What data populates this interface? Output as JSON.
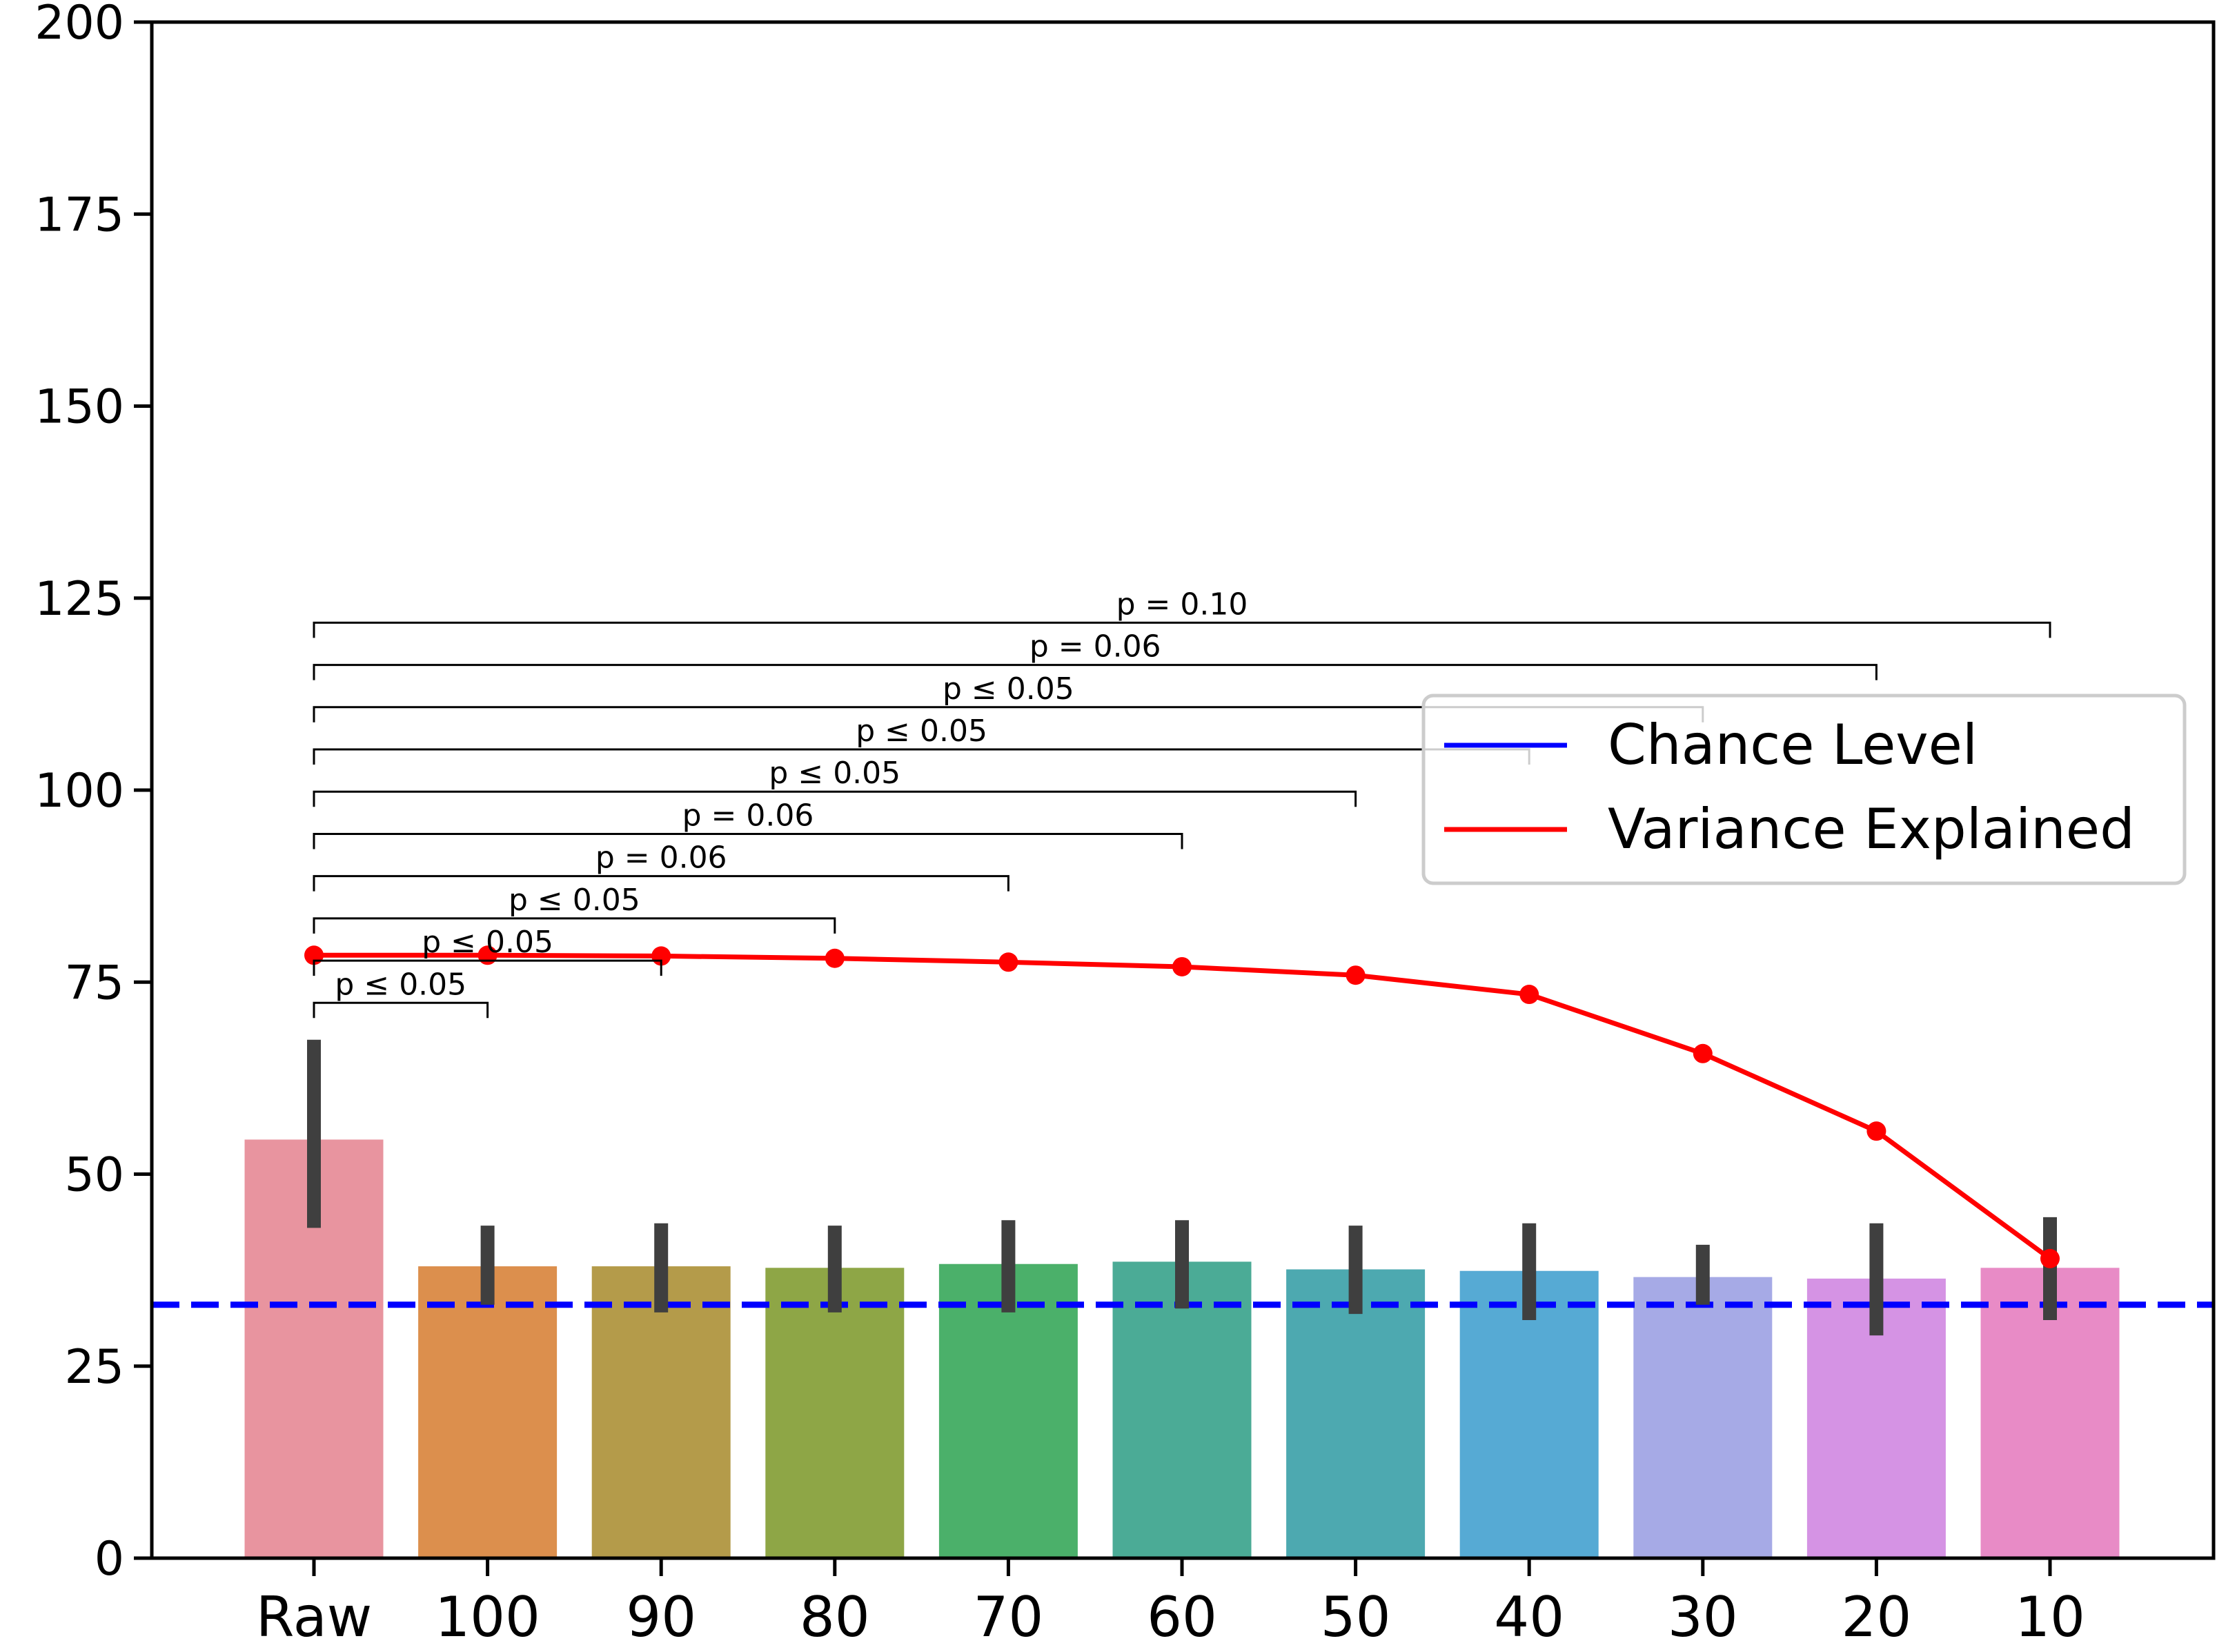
{
  "chart_data": {
    "type": "bar",
    "title": "",
    "xlabel": "",
    "ylabel": "",
    "ylim": [
      0,
      200
    ],
    "yticks": [
      0,
      25,
      50,
      75,
      100,
      125,
      150,
      175,
      200
    ],
    "categories": [
      "Raw",
      "100",
      "90",
      "80",
      "70",
      "60",
      "50",
      "40",
      "30",
      "20",
      "10"
    ],
    "bar_values": [
      54.5,
      38.0,
      38.0,
      37.8,
      38.3,
      38.6,
      37.6,
      37.4,
      36.6,
      36.4,
      37.8
    ],
    "error_bars": [
      [
        43.0,
        67.5
      ],
      [
        33.0,
        43.3
      ],
      [
        32.0,
        43.6
      ],
      [
        32.0,
        43.3
      ],
      [
        32.0,
        44.0
      ],
      [
        32.5,
        44.0
      ],
      [
        31.8,
        43.3
      ],
      [
        31.0,
        43.6
      ],
      [
        33.0,
        40.8
      ],
      [
        29.0,
        43.6
      ],
      [
        31.0,
        44.4
      ]
    ],
    "bar_colors": [
      "#e8949f",
      "#dc8f4d",
      "#b49b4a",
      "#8ea646",
      "#4bb06a",
      "#4bab96",
      "#4da9b0",
      "#56aad4",
      "#a6aae6",
      "#d593e4",
      "#e88bc6"
    ],
    "series": [
      {
        "name": "Variance Explained",
        "type": "line",
        "color": "#ff0000",
        "values": [
          78.5,
          78.5,
          78.4,
          78.1,
          77.6,
          77.0,
          75.9,
          73.4,
          65.7,
          55.6,
          39.0
        ]
      },
      {
        "name": "Chance Level",
        "type": "hline",
        "color": "#0000ff",
        "style": "dashed",
        "value": 33.0
      }
    ],
    "annotations": [
      {
        "from": "Raw",
        "to": "100",
        "y": 72.3,
        "text": "p ≤ 0.05"
      },
      {
        "from": "Raw",
        "to": "90",
        "y": 77.8,
        "text": "p ≤ 0.05"
      },
      {
        "from": "Raw",
        "to": "80",
        "y": 83.3,
        "text": "p ≤ 0.05"
      },
      {
        "from": "Raw",
        "to": "70",
        "y": 88.8,
        "text": "p = 0.06"
      },
      {
        "from": "Raw",
        "to": "60",
        "y": 94.3,
        "text": "p = 0.06"
      },
      {
        "from": "Raw",
        "to": "50",
        "y": 99.8,
        "text": "p ≤ 0.05"
      },
      {
        "from": "Raw",
        "to": "40",
        "y": 105.3,
        "text": "p ≤ 0.05"
      },
      {
        "from": "Raw",
        "to": "30",
        "y": 110.8,
        "text": "p ≤ 0.05"
      },
      {
        "from": "Raw",
        "to": "20",
        "y": 116.3,
        "text": "p = 0.06"
      },
      {
        "from": "Raw",
        "to": "10",
        "y": 121.8,
        "text": "p = 0.10"
      }
    ],
    "legend": {
      "placement": "right",
      "entries": [
        {
          "label": "Chance Level",
          "color": "#0000ff"
        },
        {
          "label": "Variance Explained",
          "color": "#ff0000"
        }
      ]
    },
    "grid": false
  }
}
